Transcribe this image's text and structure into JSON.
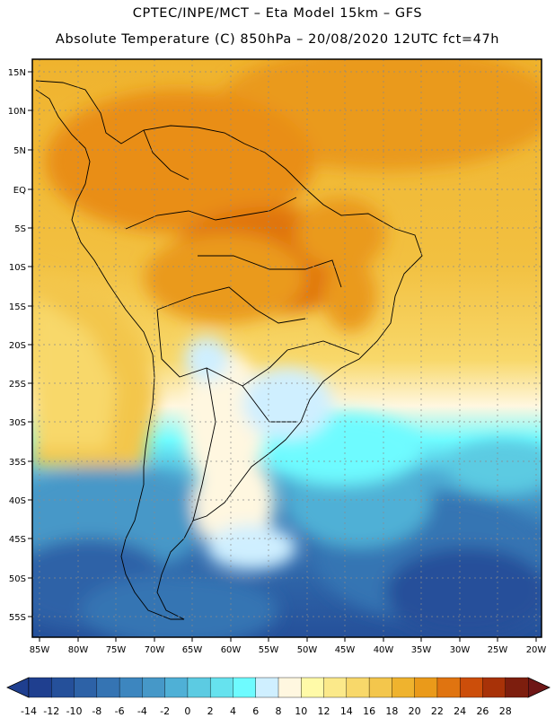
{
  "header": {
    "line1": "CPTEC/INPE/MCT –  Eta Model 15km – GFS",
    "line2": "Absolute Temperature (C) 850hPa – 20/08/2020 12UTC fct=47h"
  },
  "map": {
    "lat_labels": [
      "15N",
      "10N",
      "5N",
      "EQ",
      "5S",
      "10S",
      "15S",
      "20S",
      "25S",
      "30S",
      "35S",
      "40S",
      "45S",
      "50S",
      "55S"
    ],
    "lon_labels": [
      "85W",
      "80W",
      "75W",
      "70W",
      "65W",
      "60W",
      "55W",
      "50W",
      "45W",
      "40W",
      "35W",
      "30W",
      "25W",
      "20W"
    ]
  },
  "colorbar": {
    "labels": [
      "-14",
      "-12",
      "-10",
      "-8",
      "-6",
      "-4",
      "-2",
      "0",
      "2",
      "4",
      "6",
      "8",
      "10",
      "12",
      "14",
      "16",
      "18",
      "20",
      "22",
      "24",
      "26",
      "28"
    ],
    "colors": [
      "#1f3f8f",
      "#25509a",
      "#2d62a7",
      "#3574b3",
      "#3d86bf",
      "#4698c8",
      "#4fb0d6",
      "#5ccbe2",
      "#66e2ee",
      "#6efbff",
      "#cfefff",
      "#fff7e0",
      "#fffaa8",
      "#fbe98a",
      "#f8d86a",
      "#f3c64c",
      "#efb32e",
      "#ea9a1a",
      "#e07410",
      "#cc4e0a",
      "#a83208",
      "#7d1e0e"
    ]
  },
  "style": {
    "land_color": "#000000",
    "grid_color": "#8a8a8a"
  }
}
